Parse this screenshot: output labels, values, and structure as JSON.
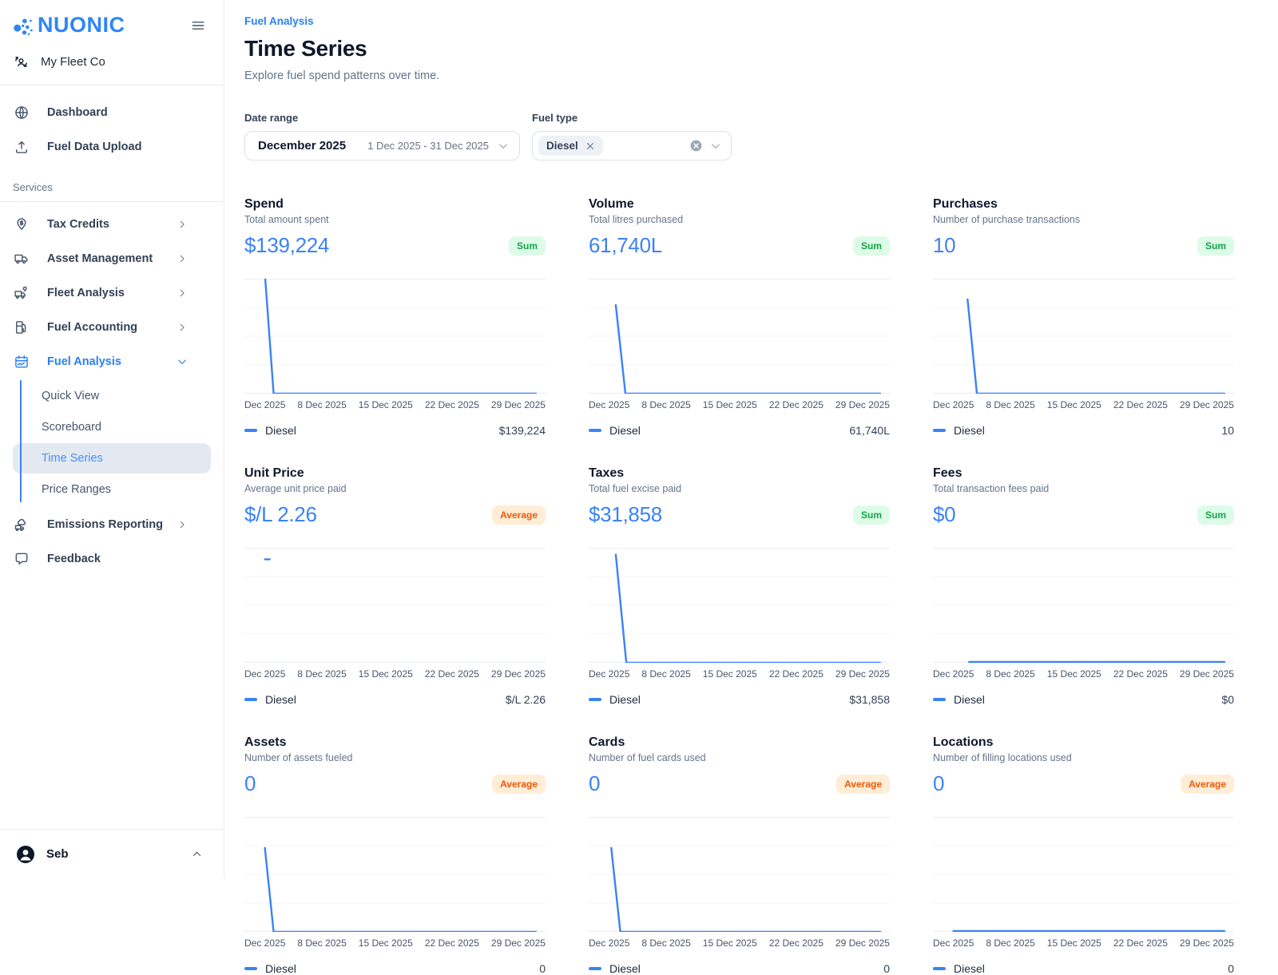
{
  "sidebar": {
    "logo_text": "NUONIC",
    "org_name": "My Fleet Co",
    "nav_top": [
      {
        "label": "Dashboard",
        "icon": "globe"
      },
      {
        "label": "Fuel Data Upload",
        "icon": "upload"
      }
    ],
    "services_label": "Services",
    "services": [
      {
        "label": "Tax Credits",
        "icon": "tax-credits",
        "chevron": "right"
      },
      {
        "label": "Asset Management",
        "icon": "truck",
        "chevron": "right"
      },
      {
        "label": "Fleet Analysis",
        "icon": "fleet",
        "chevron": "right"
      },
      {
        "label": "Fuel Accounting",
        "icon": "pump",
        "chevron": "right"
      },
      {
        "label": "Fuel Analysis",
        "icon": "fuel-analysis",
        "chevron": "down",
        "active": true,
        "children": [
          {
            "label": "Quick View"
          },
          {
            "label": "Scoreboard"
          },
          {
            "label": "Time Series",
            "selected": true
          },
          {
            "label": "Price Ranges"
          }
        ]
      },
      {
        "label": "Emissions Reporting",
        "icon": "emissions",
        "chevron": "right"
      },
      {
        "label": "Feedback",
        "icon": "feedback",
        "chevron": "none"
      }
    ],
    "user": {
      "name": "Seb"
    }
  },
  "header": {
    "breadcrumb": "Fuel Analysis",
    "title": "Time Series",
    "subtitle": "Explore fuel spend patterns over time."
  },
  "filters": {
    "date_range": {
      "label": "Date range",
      "value": "December 2025",
      "range": "1 Dec 2025 - 31 Dec 2025"
    },
    "fuel_type": {
      "label": "Fuel type",
      "chip": "Diesel"
    }
  },
  "axis_ticks": [
    "Dec 2025",
    "8 Dec 2025",
    "15 Dec 2025",
    "22 Dec 2025",
    "29 Dec 2025"
  ],
  "colors": {
    "accent_blue": "#3b82f6",
    "brand_blue": "#2e86f5",
    "sum_badge_text": "#16a34a",
    "sum_badge_bg": "#dcfce7",
    "avg_badge_text": "#ea580c",
    "avg_badge_bg": "#ffedd5"
  },
  "chart_data": [
    {
      "type": "line",
      "title": "Spend",
      "series": [
        {
          "name": "Diesel",
          "total": "$139,224"
        }
      ],
      "x": [
        "1 Dec 2025",
        "8 Dec 2025",
        "15 Dec 2025",
        "22 Dec 2025",
        "29 Dec 2025"
      ],
      "shape_pct": [
        [
          6.8,
          -4
        ],
        [
          9.7,
          100
        ],
        [
          96.8,
          100
        ]
      ]
    },
    {
      "type": "line",
      "title": "Volume",
      "series": [
        {
          "name": "Diesel",
          "total": "61,740L"
        }
      ],
      "x": [
        "1 Dec 2025",
        "8 Dec 2025",
        "15 Dec 2025",
        "22 Dec 2025",
        "29 Dec 2025"
      ],
      "shape_pct": [
        [
          9,
          23
        ],
        [
          12.2,
          100
        ],
        [
          96.8,
          100
        ]
      ]
    },
    {
      "type": "line",
      "title": "Purchases",
      "series": [
        {
          "name": "Diesel",
          "total": "10"
        }
      ],
      "x": [
        "1 Dec 2025",
        "8 Dec 2025",
        "15 Dec 2025",
        "22 Dec 2025",
        "29 Dec 2025"
      ],
      "shape_pct": [
        [
          11.5,
          18
        ],
        [
          14.6,
          100
        ],
        [
          96.8,
          100
        ]
      ]
    },
    {
      "type": "line",
      "title": "Unit Price",
      "series": [
        {
          "name": "Diesel",
          "total": "$/L 2.26"
        }
      ],
      "x": [
        "1 Dec 2025",
        "8 Dec 2025",
        "15 Dec 2025",
        "22 Dec 2025",
        "29 Dec 2025"
      ],
      "shape_pct": [
        [
          6.8,
          10
        ],
        [
          8.4,
          10
        ]
      ]
    },
    {
      "type": "line",
      "title": "Taxes",
      "series": [
        {
          "name": "Diesel",
          "total": "$31,858"
        }
      ],
      "x": [
        "1 Dec 2025",
        "8 Dec 2025",
        "15 Dec 2025",
        "22 Dec 2025",
        "29 Dec 2025"
      ],
      "shape_pct": [
        [
          9,
          6
        ],
        [
          12.5,
          100
        ],
        [
          96.8,
          100
        ]
      ]
    },
    {
      "type": "line",
      "title": "Fees",
      "series": [
        {
          "name": "Diesel",
          "total": "$0"
        }
      ],
      "x": [
        "1 Dec 2025",
        "8 Dec 2025",
        "15 Dec 2025",
        "22 Dec 2025",
        "29 Dec 2025"
      ],
      "shape_pct": [
        [
          12,
          99.3
        ],
        [
          96.8,
          99.3
        ]
      ]
    },
    {
      "type": "line",
      "title": "Assets",
      "series": [
        {
          "name": "Diesel",
          "total": "0"
        }
      ],
      "x": [
        "1 Dec 2025",
        "8 Dec 2025",
        "15 Dec 2025",
        "22 Dec 2025",
        "29 Dec 2025"
      ],
      "shape_pct": [
        [
          6.8,
          27
        ],
        [
          9.7,
          100
        ],
        [
          96.8,
          100
        ]
      ]
    },
    {
      "type": "line",
      "title": "Cards",
      "series": [
        {
          "name": "Diesel",
          "total": "0"
        }
      ],
      "x": [
        "1 Dec 2025",
        "8 Dec 2025",
        "15 Dec 2025",
        "22 Dec 2025",
        "29 Dec 2025"
      ],
      "shape_pct": [
        [
          7.5,
          27
        ],
        [
          10.5,
          100
        ],
        [
          96.8,
          100
        ]
      ]
    },
    {
      "type": "line",
      "title": "Locations",
      "series": [
        {
          "name": "Diesel",
          "total": "0"
        }
      ],
      "x": [
        "1 Dec 2025",
        "8 Dec 2025",
        "15 Dec 2025",
        "22 Dec 2025",
        "29 Dec 2025"
      ],
      "shape_pct": [
        [
          6.8,
          99.3
        ],
        [
          96.8,
          99.3
        ]
      ]
    }
  ],
  "cards": [
    {
      "key": "spend",
      "title": "Spend",
      "subtitle": "Total amount spent",
      "value": "$139,224",
      "badge": "Sum",
      "badge_type": "sum",
      "legend_label": "Diesel",
      "legend_value": "$139,224"
    },
    {
      "key": "volume",
      "title": "Volume",
      "subtitle": "Total litres purchased",
      "value": "61,740L",
      "badge": "Sum",
      "badge_type": "sum",
      "legend_label": "Diesel",
      "legend_value": "61,740L"
    },
    {
      "key": "purchases",
      "title": "Purchases",
      "subtitle": "Number of purchase transactions",
      "value": "10",
      "badge": "Sum",
      "badge_type": "sum",
      "legend_label": "Diesel",
      "legend_value": "10"
    },
    {
      "key": "unit-price",
      "title": "Unit Price",
      "subtitle": "Average unit price paid",
      "value": "$/L 2.26",
      "badge": "Average",
      "badge_type": "average",
      "legend_label": "Diesel",
      "legend_value": "$/L 2.26"
    },
    {
      "key": "taxes",
      "title": "Taxes",
      "subtitle": "Total fuel excise paid",
      "value": "$31,858",
      "badge": "Sum",
      "badge_type": "sum",
      "legend_label": "Diesel",
      "legend_value": "$31,858"
    },
    {
      "key": "fees",
      "title": "Fees",
      "subtitle": "Total transaction fees paid",
      "value": "$0",
      "badge": "Sum",
      "badge_type": "sum",
      "legend_label": "Diesel",
      "legend_value": "$0"
    },
    {
      "key": "assets",
      "title": "Assets",
      "subtitle": "Number of assets fueled",
      "value": "0",
      "badge": "Average",
      "badge_type": "average",
      "legend_label": "Diesel",
      "legend_value": "0"
    },
    {
      "key": "cards",
      "title": "Cards",
      "subtitle": "Number of fuel cards used",
      "value": "0",
      "badge": "Average",
      "badge_type": "average",
      "legend_label": "Diesel",
      "legend_value": "0"
    },
    {
      "key": "locations",
      "title": "Locations",
      "subtitle": "Number of filling locations used",
      "value": "0",
      "badge": "Average",
      "badge_type": "average",
      "legend_label": "Diesel",
      "legend_value": "0"
    }
  ]
}
